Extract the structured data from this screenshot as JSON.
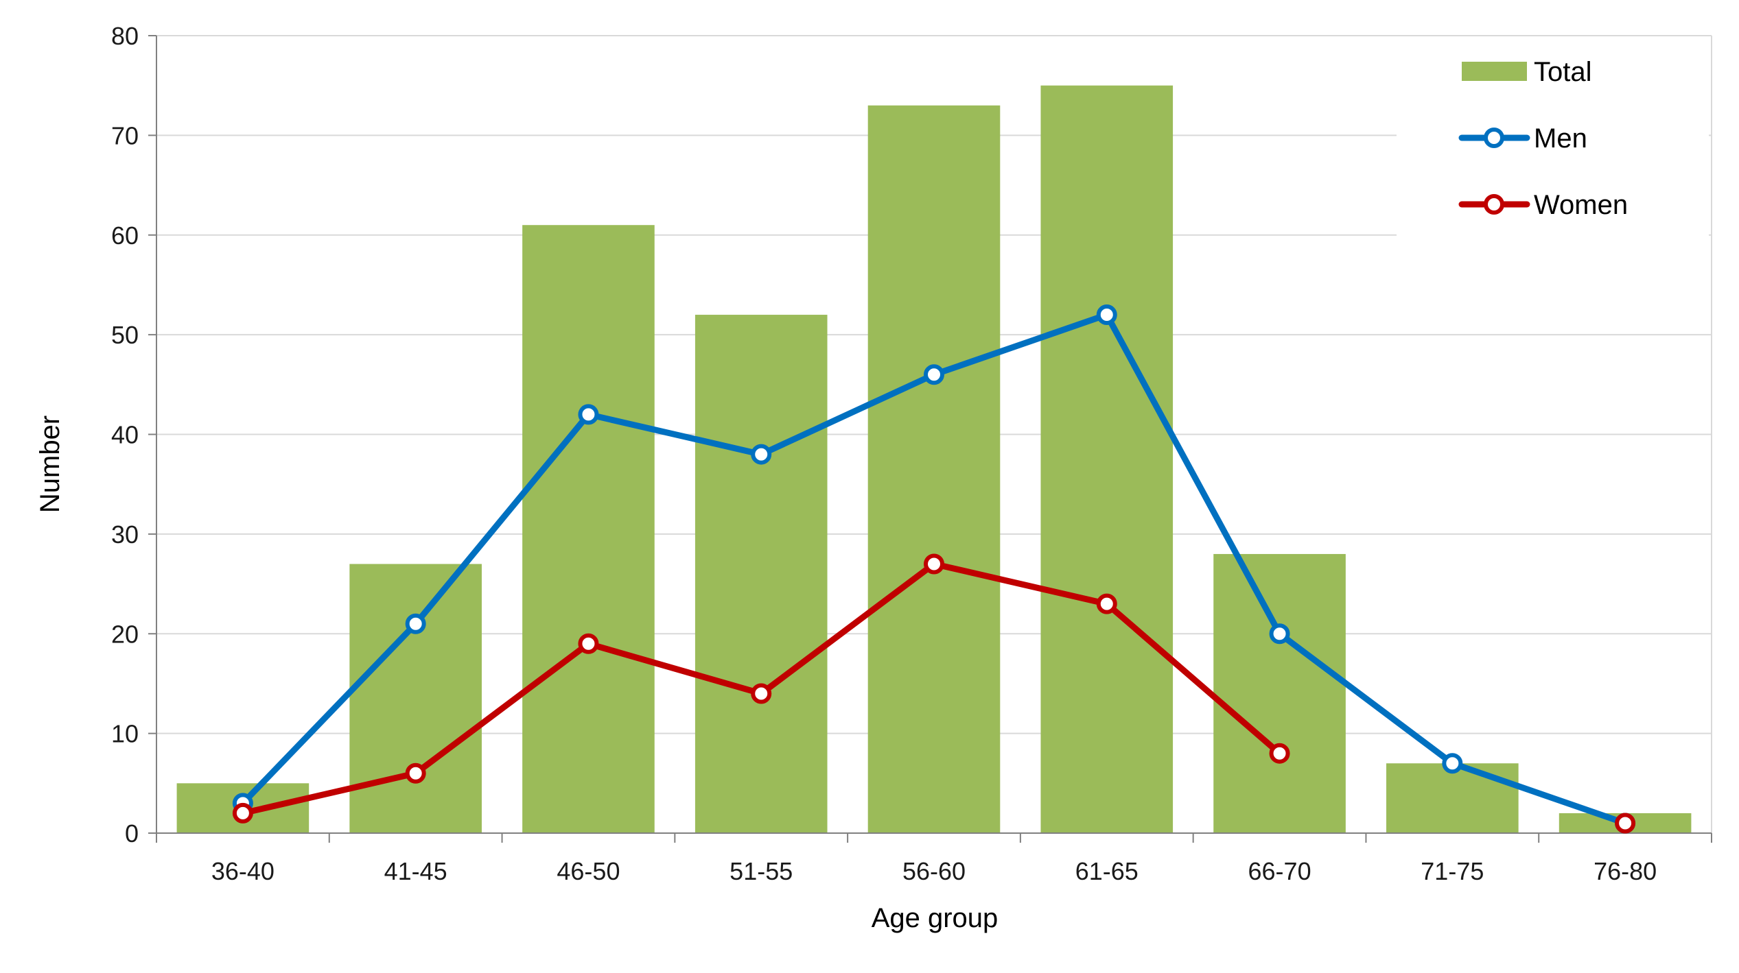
{
  "chart_data": {
    "type": "bar",
    "categories": [
      "36-40",
      "41-45",
      "46-50",
      "51-55",
      "56-60",
      "61-65",
      "66-70",
      "71-75",
      "76-80"
    ],
    "series": [
      {
        "name": "Total",
        "type": "bar",
        "color": "#9bbb59",
        "values": [
          5,
          27,
          61,
          52,
          73,
          75,
          28,
          7,
          2
        ]
      },
      {
        "name": "Men",
        "type": "line",
        "color": "#0070c0",
        "values": [
          3,
          21,
          42,
          38,
          46,
          52,
          20,
          7,
          1
        ]
      },
      {
        "name": "Women",
        "type": "line",
        "color": "#c00000",
        "values": [
          2,
          6,
          19,
          14,
          27,
          23,
          8,
          null,
          1
        ]
      }
    ],
    "xlabel": "Age group",
    "ylabel": "Number",
    "ylim": [
      0,
      80
    ],
    "yticks": [
      "0",
      "10",
      "20",
      "30",
      "40",
      "50",
      "60",
      "70",
      "80"
    ],
    "grid": true,
    "legend_position": "top-right"
  }
}
